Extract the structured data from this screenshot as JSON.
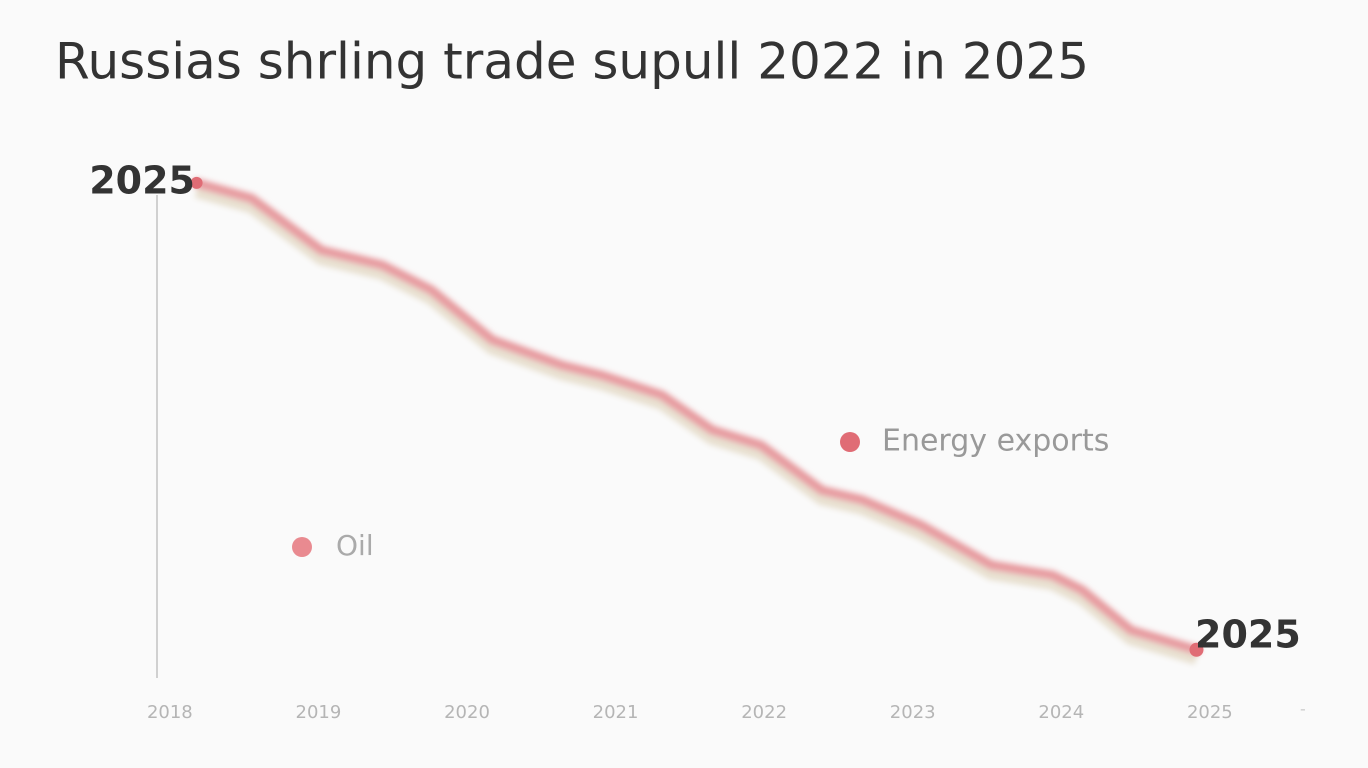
{
  "chart_data": {
    "type": "line",
    "title": "Russias shrling trade supull 2022 in 2025",
    "x": [
      2018.18,
      2018.55,
      2019.02,
      2019.43,
      2019.76,
      2020.17,
      2020.64,
      2020.91,
      2021.31,
      2021.65,
      2021.98,
      2022.39,
      2022.66,
      2023.06,
      2023.53,
      2023.94,
      2024.14,
      2024.47,
      2024.91
    ],
    "series": [
      {
        "name": "Energy exports",
        "color": "#e79a9f",
        "values": [
          93.8,
          90.9,
          81.1,
          78.3,
          73.6,
          64.2,
          59.4,
          57.5,
          53.8,
          47.2,
          44.3,
          35.8,
          34.0,
          29.2,
          21.7,
          19.8,
          17.0,
          9.4,
          5.7
        ]
      }
    ],
    "xlim": [
      2017.9,
      2025.6
    ],
    "xticks": [
      2018,
      2019,
      2020,
      2021,
      2022,
      2023,
      2024,
      2025
    ],
    "ylim": [
      0,
      100
    ],
    "annotations": [
      {
        "text": "2025"
      },
      {
        "text": "2025"
      },
      {
        "text": "Oil"
      }
    ]
  }
}
